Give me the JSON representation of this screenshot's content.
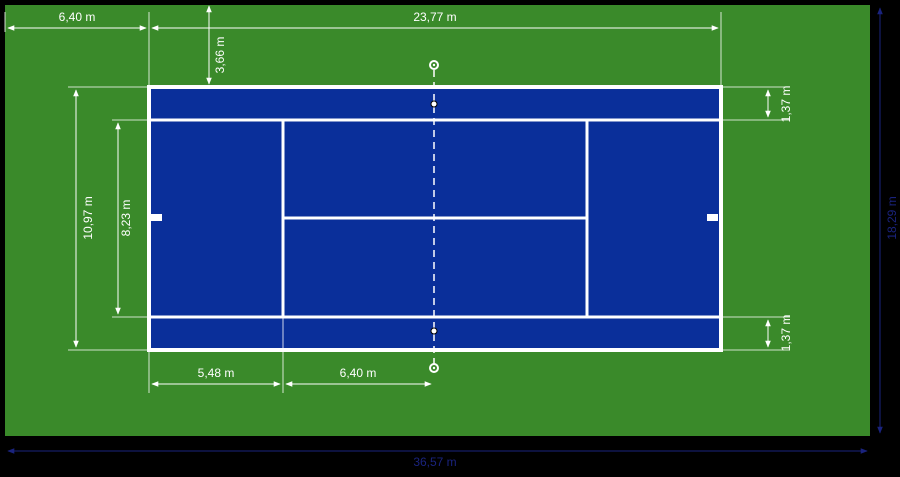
{
  "colors": {
    "background": "#000000",
    "grass": "#3a8a2a",
    "court": "#0a2f9a",
    "lines": "#ffffff",
    "dim_light": "#ffffff",
    "dim_dark": "#1a237e"
  },
  "dimensions": {
    "runoff_back": "6,40 m",
    "court_length": "23,77 m",
    "runoff_side": "3,66 m",
    "doubles_width": "10,97 m",
    "singles_width": "8,23 m",
    "alley_top": "1,37 m",
    "alley_bottom": "1,37 m",
    "baseline_to_service": "5,48 m",
    "service_to_net": "6,40 m",
    "total_width": "18,29 m",
    "total_length": "36,57 m"
  }
}
